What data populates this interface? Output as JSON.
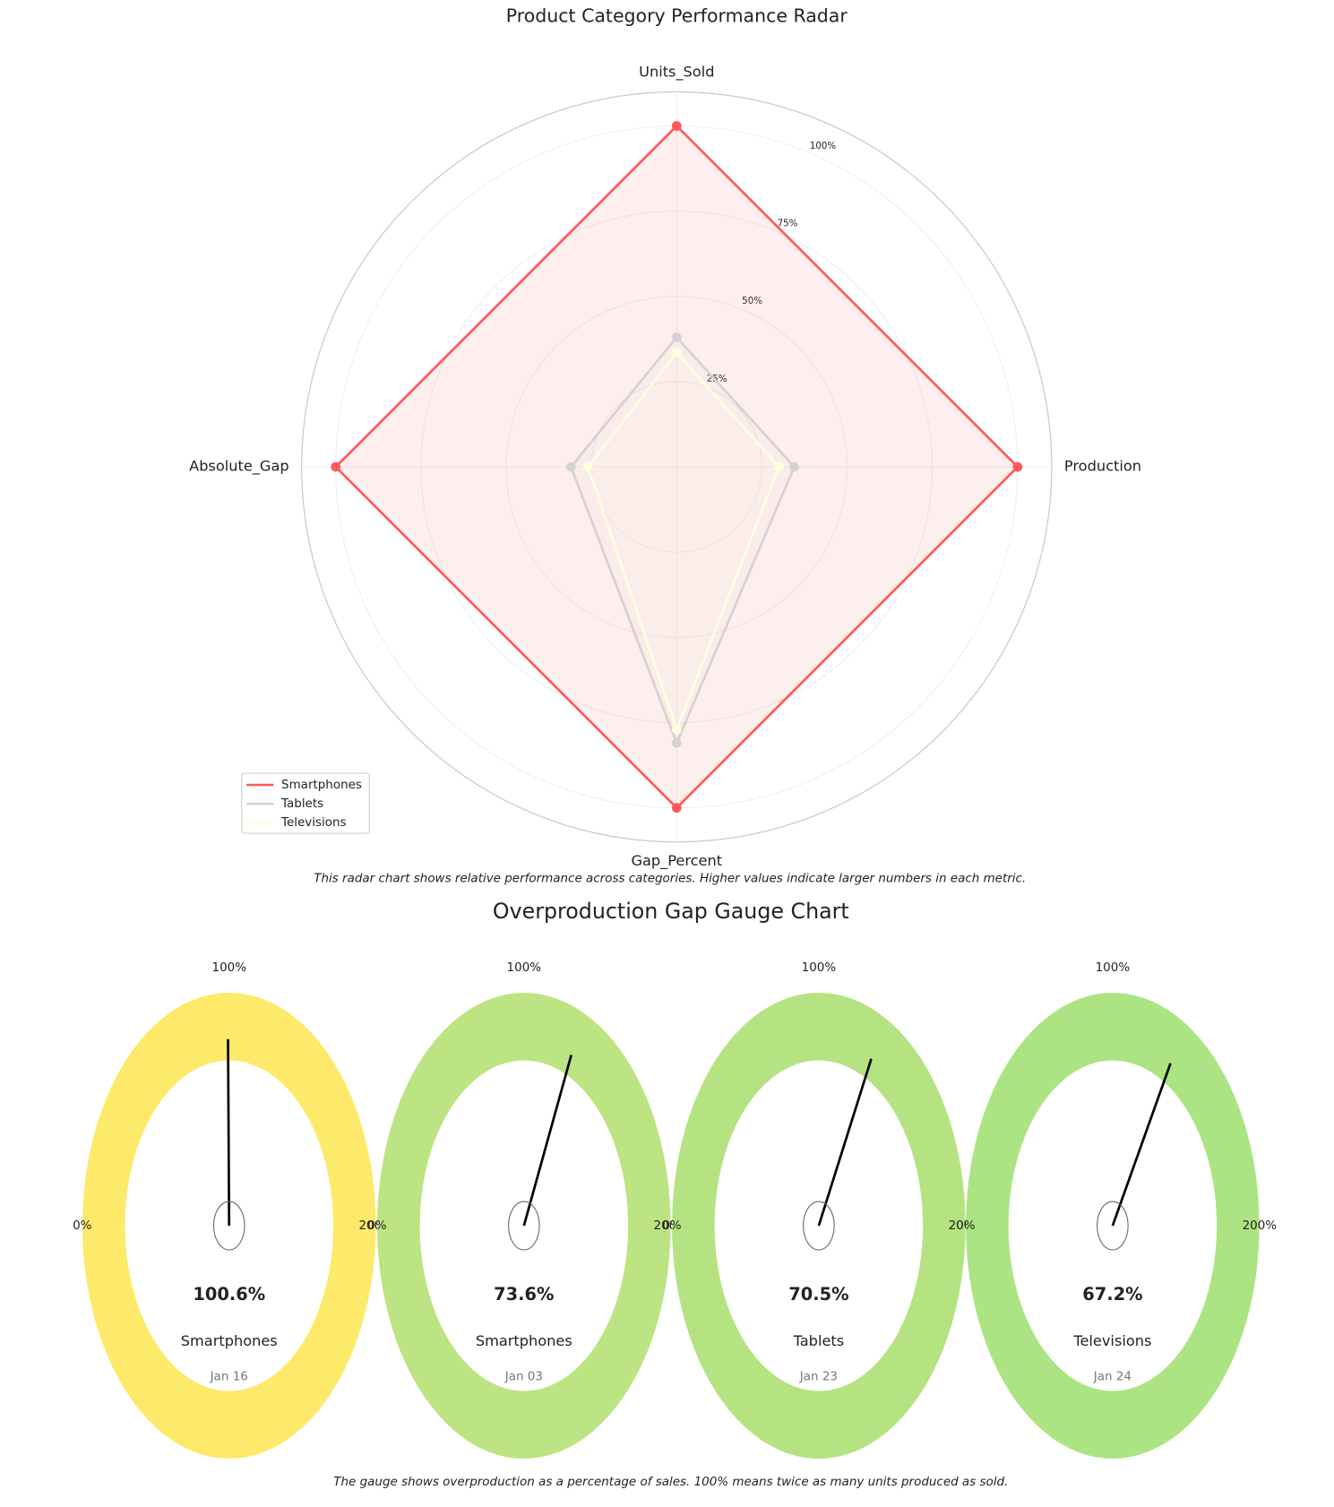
{
  "chart_data": [
    {
      "type": "radar",
      "title": "Product Category Performance Radar",
      "categories": [
        "Units_Sold",
        "Production",
        "Gap_Percent",
        "Absolute_Gap"
      ],
      "series": [
        {
          "name": "Smartphones",
          "color": "#ff5a5a",
          "values": [
            100,
            100,
            100,
            100
          ]
        },
        {
          "name": "Tablets",
          "color": "#d3d3d3",
          "values": [
            38,
            34.5,
            81,
            31
          ]
        },
        {
          "name": "Televisions",
          "color": "#ffffe0",
          "values": [
            33.5,
            30,
            77,
            26
          ]
        }
      ],
      "ylim": [
        0,
        110
      ],
      "yticks": [
        {
          "value": 25,
          "label": "25%"
        },
        {
          "value": 50,
          "label": "50%"
        },
        {
          "value": 75,
          "label": "75%"
        },
        {
          "value": 100,
          "label": "100%"
        }
      ],
      "grid": true,
      "legend": "lower left",
      "note": "This radar chart shows relative performance across categories. Higher values indicate larger numbers in each metric."
    },
    {
      "type": "gauge",
      "title": "Overproduction Gap Gauge Chart",
      "range": [
        0,
        200
      ],
      "ticks": [
        {
          "value": 0,
          "label": "0%"
        },
        {
          "value": 100,
          "label": "100%"
        },
        {
          "value": 200,
          "label": "200%"
        }
      ],
      "gauges": [
        {
          "name": "Smartphones",
          "date": "Jan 16",
          "value": 100.6,
          "value_label": "100.6%",
          "color": "#fdea6a"
        },
        {
          "name": "Smartphones",
          "date": "Jan 03",
          "value": 73.6,
          "value_label": "73.6%",
          "color": "#bde482"
        },
        {
          "name": "Tablets",
          "date": "Jan 23",
          "value": 70.5,
          "value_label": "70.5%",
          "color": "#b5e381"
        },
        {
          "name": "Televisions",
          "date": "Jan 24",
          "value": 67.2,
          "value_label": "67.2%",
          "color": "#ade483"
        }
      ],
      "note": "The gauge shows overproduction as a percentage of sales. 100% means twice as many units produced as sold."
    }
  ]
}
